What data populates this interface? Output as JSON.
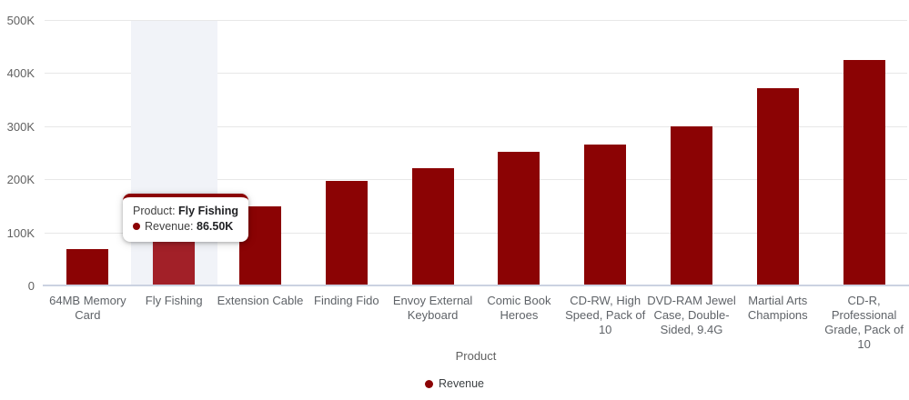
{
  "chart_data": {
    "type": "bar",
    "title": "",
    "xlabel": "Product",
    "ylabel": "",
    "unit": "K",
    "categories": [
      "64MB Memory Card",
      "Fly Fishing",
      "Extension Cable",
      "Finding Fido",
      "Envoy External Keyboard",
      "Comic Book Heroes",
      "CD-RW, High Speed, Pack of 10",
      "DVD-RAM Jewel Case, Double-Sided, 9.4G",
      "Martial Arts Champions",
      "CD-R, Professional Grade, Pack of 10"
    ],
    "series": [
      {
        "name": "Revenue",
        "values": [
          69,
          86.5,
          149,
          196.5,
          221,
          252.5,
          265,
          300,
          371.5,
          424
        ]
      }
    ],
    "y_ticks": [
      {
        "value": 500,
        "label": "500K"
      },
      {
        "value": 400,
        "label": "400K"
      },
      {
        "value": 300,
        "label": "300K"
      },
      {
        "value": 200,
        "label": "200K"
      },
      {
        "value": 100,
        "label": "100K"
      },
      {
        "value": 0,
        "label": "0"
      }
    ],
    "ylim": [
      0,
      500
    ],
    "grid": true,
    "legend_position": "bottom-center",
    "highlighted_category_index": 1
  },
  "tooltip": {
    "line1_label": "Product:",
    "line1_value": "Fly Fishing",
    "line2_label": "Revenue:",
    "line2_value": "86.50K"
  },
  "legend": {
    "items": [
      {
        "label": "Revenue",
        "color": "#8B0304"
      }
    ]
  },
  "colors": {
    "bar": "#8B0304",
    "bar_highlighted": "#A22028",
    "highlight_band": "#F1F3F8",
    "gridline": "#E8E8E8",
    "axis_line": "#CBD2E1",
    "axis_text": "#616161",
    "category_text": "#5F6368",
    "tooltip_accent": "#8B0304"
  }
}
